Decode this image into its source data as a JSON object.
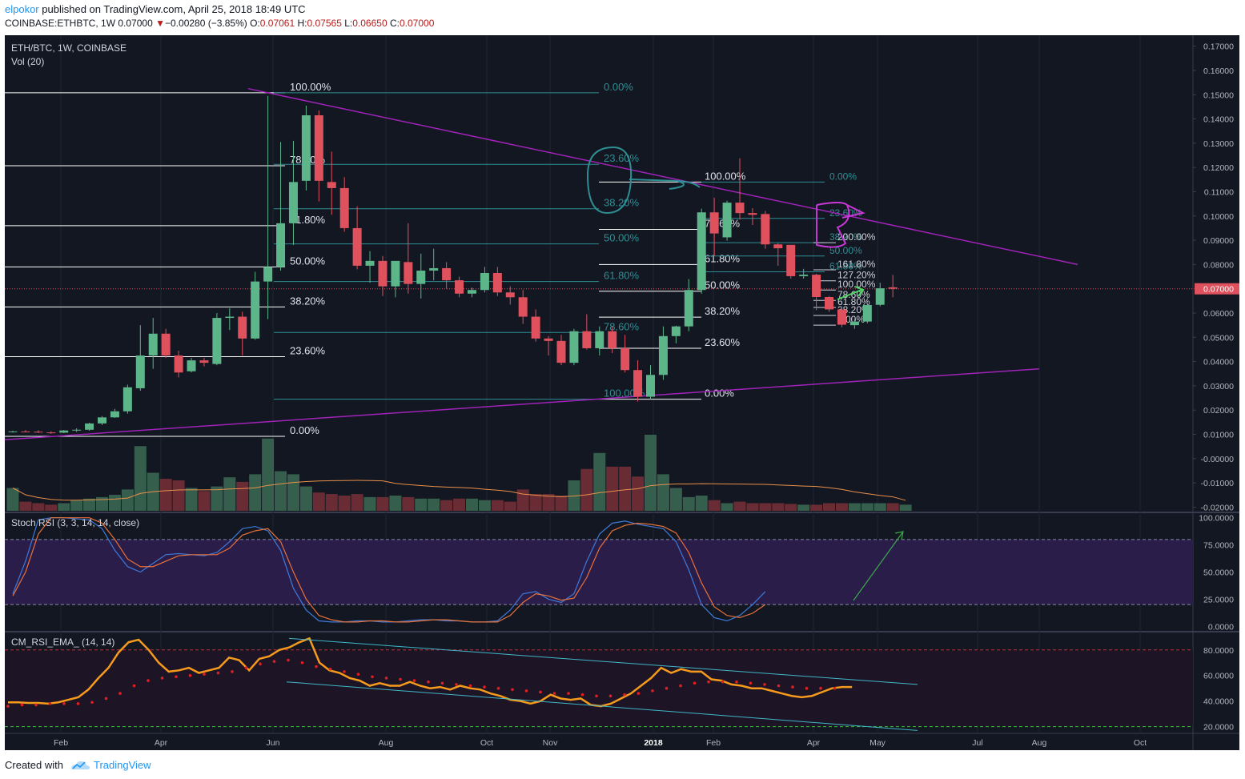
{
  "header": {
    "user": "elpokor",
    "published_text": "published on TradingView.com, April 25, 2018 18:49 UTC",
    "symbol": "COINBASE:ETHBTC, 1W",
    "last": "0.07000",
    "change_arrow": "▼",
    "change": "−0.00280 (−3.85%)",
    "open_label": "O:",
    "open": "0.07061",
    "high_label": "H:",
    "high": "0.07565",
    "low_label": "L:",
    "low": "0.06650",
    "close_label": "C:",
    "close": "0.07000"
  },
  "footer": {
    "created_with": "Created with",
    "brand": "TradingView"
  },
  "colors": {
    "up": "#5db58a",
    "down": "#e0515e",
    "bg": "#131722",
    "trend": "#a023b8",
    "fib": "#2e8e93",
    "rsi": "#f59a1c"
  },
  "chart_data": [
    {
      "type": "candlestick",
      "title": "ETH/BTC, 1W, COINBASE",
      "price_axis": {
        "ticks": [
          "0.17000",
          "0.16000",
          "0.15000",
          "0.14000",
          "0.13000",
          "0.12000",
          "0.11000",
          "0.10000",
          "0.09000",
          "0.08000",
          "0.07000",
          "0.06000",
          "0.05000",
          "0.04000",
          "0.03000",
          "0.02000",
          "0.01000",
          "-0.00000",
          "-0.01000",
          "-0.02000"
        ],
        "ylim": [
          -0.0215,
          0.1745
        ],
        "last_price_tag": "0.07000"
      },
      "time_axis": {
        "ticks": [
          "Feb",
          "Apr",
          "Jun",
          "Aug",
          "Oct",
          "Nov",
          "2018",
          "Feb",
          "Apr",
          "May",
          "Jul",
          "Aug",
          "Oct"
        ]
      },
      "candles": [
        [
          0.011,
          0.0115,
          0.0107,
          0.0112
        ],
        [
          0.0112,
          0.0118,
          0.0108,
          0.0111
        ],
        [
          0.0111,
          0.0117,
          0.0105,
          0.0108
        ],
        [
          0.0108,
          0.0113,
          0.0102,
          0.0107
        ],
        [
          0.0107,
          0.0118,
          0.0105,
          0.0116
        ],
        [
          0.0116,
          0.0125,
          0.011,
          0.0119
        ],
        [
          0.0119,
          0.0148,
          0.0115,
          0.0145
        ],
        [
          0.0145,
          0.0175,
          0.0138,
          0.017
        ],
        [
          0.017,
          0.0205,
          0.0168,
          0.0195
        ],
        [
          0.0195,
          0.0305,
          0.0185,
          0.0294
        ],
        [
          0.029,
          0.055,
          0.028,
          0.0425
        ],
        [
          0.0425,
          0.058,
          0.037,
          0.0515
        ],
        [
          0.0515,
          0.0535,
          0.0415,
          0.0425
        ],
        [
          0.0425,
          0.0445,
          0.0335,
          0.0355
        ],
        [
          0.036,
          0.0415,
          0.0355,
          0.0405
        ],
        [
          0.0405,
          0.0415,
          0.038,
          0.0395
        ],
        [
          0.039,
          0.06,
          0.0385,
          0.058
        ],
        [
          0.058,
          0.062,
          0.053,
          0.0585
        ],
        [
          0.0585,
          0.0605,
          0.0425,
          0.0495
        ],
        [
          0.0495,
          0.077,
          0.049,
          0.073
        ],
        [
          0.073,
          0.1495,
          0.0575,
          0.079
        ],
        [
          0.079,
          0.1305,
          0.0775,
          0.097
        ],
        [
          0.097,
          0.131,
          0.088,
          0.114
        ],
        [
          0.1145,
          0.1455,
          0.1105,
          0.1415
        ],
        [
          0.1415,
          0.1435,
          0.106,
          0.1145
        ],
        [
          0.114,
          0.1265,
          0.1005,
          0.1115
        ],
        [
          0.1115,
          0.116,
          0.0935,
          0.095
        ],
        [
          0.095,
          0.104,
          0.078,
          0.0795
        ],
        [
          0.0795,
          0.0855,
          0.0725,
          0.0815
        ],
        [
          0.0815,
          0.0835,
          0.067,
          0.071
        ],
        [
          0.071,
          0.081,
          0.0665,
          0.0815
        ],
        [
          0.081,
          0.097,
          0.068,
          0.072
        ],
        [
          0.072,
          0.0845,
          0.066,
          0.0775
        ],
        [
          0.0775,
          0.0865,
          0.0735,
          0.0785
        ],
        [
          0.0785,
          0.081,
          0.07,
          0.0735
        ],
        [
          0.0735,
          0.075,
          0.0665,
          0.068
        ],
        [
          0.068,
          0.0705,
          0.0665,
          0.0695
        ],
        [
          0.0695,
          0.079,
          0.0685,
          0.0765
        ],
        [
          0.0765,
          0.079,
          0.067,
          0.0685
        ],
        [
          0.0685,
          0.071,
          0.0635,
          0.0665
        ],
        [
          0.0665,
          0.0695,
          0.0555,
          0.0585
        ],
        [
          0.0585,
          0.0615,
          0.0482,
          0.0495
        ],
        [
          0.0495,
          0.0505,
          0.0425,
          0.0485
        ],
        [
          0.0485,
          0.051,
          0.0385,
          0.0395
        ],
        [
          0.0395,
          0.0535,
          0.0385,
          0.0525
        ],
        [
          0.0525,
          0.0595,
          0.045,
          0.0455
        ],
        [
          0.0455,
          0.0545,
          0.0425,
          0.0525
        ],
        [
          0.0525,
          0.0545,
          0.0435,
          0.0455
        ],
        [
          0.0455,
          0.051,
          0.0355,
          0.0365
        ],
        [
          0.0365,
          0.0405,
          0.0235,
          0.0255
        ],
        [
          0.0255,
          0.0385,
          0.0245,
          0.0345
        ],
        [
          0.0345,
          0.0545,
          0.0325,
          0.0505
        ],
        [
          0.0505,
          0.0548,
          0.0475,
          0.0545
        ],
        [
          0.0545,
          0.074,
          0.0525,
          0.0695
        ],
        [
          0.0695,
          0.103,
          0.068,
          0.1015
        ],
        [
          0.1015,
          0.1075,
          0.0835,
          0.0928
        ],
        [
          0.0912,
          0.1063,
          0.0898,
          0.1055
        ],
        [
          0.1055,
          0.1238,
          0.0985,
          0.1012
        ],
        [
          0.1012,
          0.1032,
          0.0963,
          0.1005
        ],
        [
          0.1008,
          0.1021,
          0.0865,
          0.0883
        ],
        [
          0.0883,
          0.0888,
          0.0795,
          0.0867
        ],
        [
          0.0881,
          0.0881,
          0.0742,
          0.0752
        ],
        [
          0.0752,
          0.0782,
          0.0742,
          0.0758
        ],
        [
          0.0758,
          0.0762,
          0.0612,
          0.0666
        ],
        [
          0.0666,
          0.067,
          0.0605,
          0.0615
        ],
        [
          0.0615,
          0.0625,
          0.0542,
          0.0552
        ],
        [
          0.055,
          0.0575,
          0.0535,
          0.0565
        ],
        [
          0.0565,
          0.0638,
          0.0558,
          0.0633
        ],
        [
          0.0634,
          0.0725,
          0.0628,
          0.0702
        ],
        [
          0.0706,
          0.0757,
          0.0665,
          0.07
        ]
      ],
      "fib_retracements": [
        [
          "100.00%",
          "78.60%",
          "61.80%",
          "50.00%",
          "38.20%",
          "23.60%",
          "0.00%"
        ],
        [
          "0.00%",
          "23.60%",
          "38.20%",
          "50.00%",
          "61.80%",
          "78.60%",
          "100.00%"
        ],
        [
          "100.00%",
          "78.60%",
          "61.80%",
          "50.00%",
          "38.20%",
          "23.60%",
          "0.00%"
        ],
        [
          "0.00%",
          "23.60%",
          "38.20%",
          "50.00%",
          "61.80%"
        ],
        [
          "200.00%",
          "161.80%",
          "127.20%",
          "100.00%",
          "78.60%",
          "61.80%",
          "38.20%",
          "0.00%"
        ]
      ]
    },
    {
      "type": "bar",
      "title": "Vol (20)",
      "volumes": [
        30,
        12,
        10,
        8,
        10,
        14,
        16,
        18,
        21,
        28,
        85,
        50,
        42,
        40,
        30,
        26,
        32,
        44,
        38,
        48,
        95,
        52,
        48,
        32,
        24,
        22,
        20,
        22,
        18,
        18,
        20,
        18,
        16,
        16,
        14,
        16,
        16,
        14,
        14,
        12,
        28,
        22,
        22,
        20,
        40,
        55,
        76,
        58,
        58,
        45,
        100,
        48,
        30,
        18,
        20,
        14,
        10,
        12,
        10,
        10,
        10,
        9,
        8,
        8,
        10,
        10,
        10,
        10,
        10,
        10,
        8
      ]
    },
    {
      "type": "line",
      "title": "Stoch RSI (3, 3, 14, 14, close)",
      "yticks": [
        "100.0000",
        "75.0000",
        "50.0000",
        "25.0000",
        "0.0000"
      ],
      "ylim": [
        -2,
        102
      ],
      "series": [
        {
          "values": [
            30,
            60,
            98,
            100,
            100,
            99,
            98,
            90,
            70,
            55,
            50,
            58,
            66,
            67,
            66,
            65,
            68,
            78,
            90,
            92,
            88,
            70,
            35,
            15,
            5,
            4,
            4,
            5,
            5,
            4,
            4,
            5,
            6,
            6,
            5,
            5,
            4,
            4,
            5,
            15,
            30,
            32,
            25,
            22,
            30,
            60,
            85,
            95,
            97,
            94,
            92,
            90,
            78,
            52,
            20,
            8,
            5,
            10,
            20,
            32
          ]
        },
        {
          "values": [
            28,
            50,
            85,
            100,
            100,
            100,
            100,
            95,
            80,
            62,
            55,
            55,
            60,
            65,
            66,
            66,
            66,
            72,
            84,
            88,
            90,
            78,
            50,
            25,
            10,
            6,
            4,
            4,
            5,
            5,
            4,
            4,
            5,
            6,
            6,
            5,
            4,
            4,
            4,
            10,
            22,
            30,
            28,
            24,
            26,
            45,
            72,
            88,
            93,
            95,
            94,
            92,
            86,
            68,
            40,
            18,
            10,
            8,
            12,
            20
          ]
        }
      ]
    },
    {
      "type": "line",
      "title": "CM_RSI_EMA_ (14, 14)",
      "yticks": [
        "80.0000",
        "60.0000",
        "40.0000",
        "20.0000"
      ],
      "ylim": [
        16,
        93
      ],
      "series": [
        {
          "values": [
            39,
            39,
            38.5,
            38.5,
            38,
            39,
            41,
            43,
            49,
            58,
            66,
            78,
            86,
            88,
            80,
            70,
            63,
            64,
            66,
            62,
            64,
            66,
            74,
            72,
            64,
            73,
            75,
            80,
            82,
            86,
            89,
            70,
            64,
            62,
            58,
            56,
            52,
            54,
            52,
            52,
            55,
            52,
            50,
            51,
            49,
            52,
            50,
            49,
            46,
            44,
            41,
            40,
            38,
            40,
            45,
            42,
            41,
            42,
            37,
            36,
            38,
            42,
            46,
            52,
            58,
            66,
            62,
            65,
            63,
            63,
            57,
            56,
            53,
            52,
            50,
            50,
            48,
            46,
            44,
            43,
            44,
            47,
            50,
            51,
            51
          ]
        },
        {
          "values": [
            36,
            37,
            37,
            38,
            38,
            38,
            39,
            42,
            46,
            52,
            56,
            58,
            59,
            60,
            61,
            62,
            63,
            66,
            69,
            71,
            72,
            70,
            67,
            65,
            63,
            61,
            59,
            58,
            57,
            56,
            55,
            54,
            53,
            52,
            51,
            50,
            49,
            48,
            47,
            46,
            46,
            45,
            44,
            44,
            45,
            46,
            48,
            50,
            52,
            54,
            55,
            55,
            55,
            54,
            53,
            52,
            51,
            50,
            50,
            50
          ]
        }
      ]
    }
  ]
}
